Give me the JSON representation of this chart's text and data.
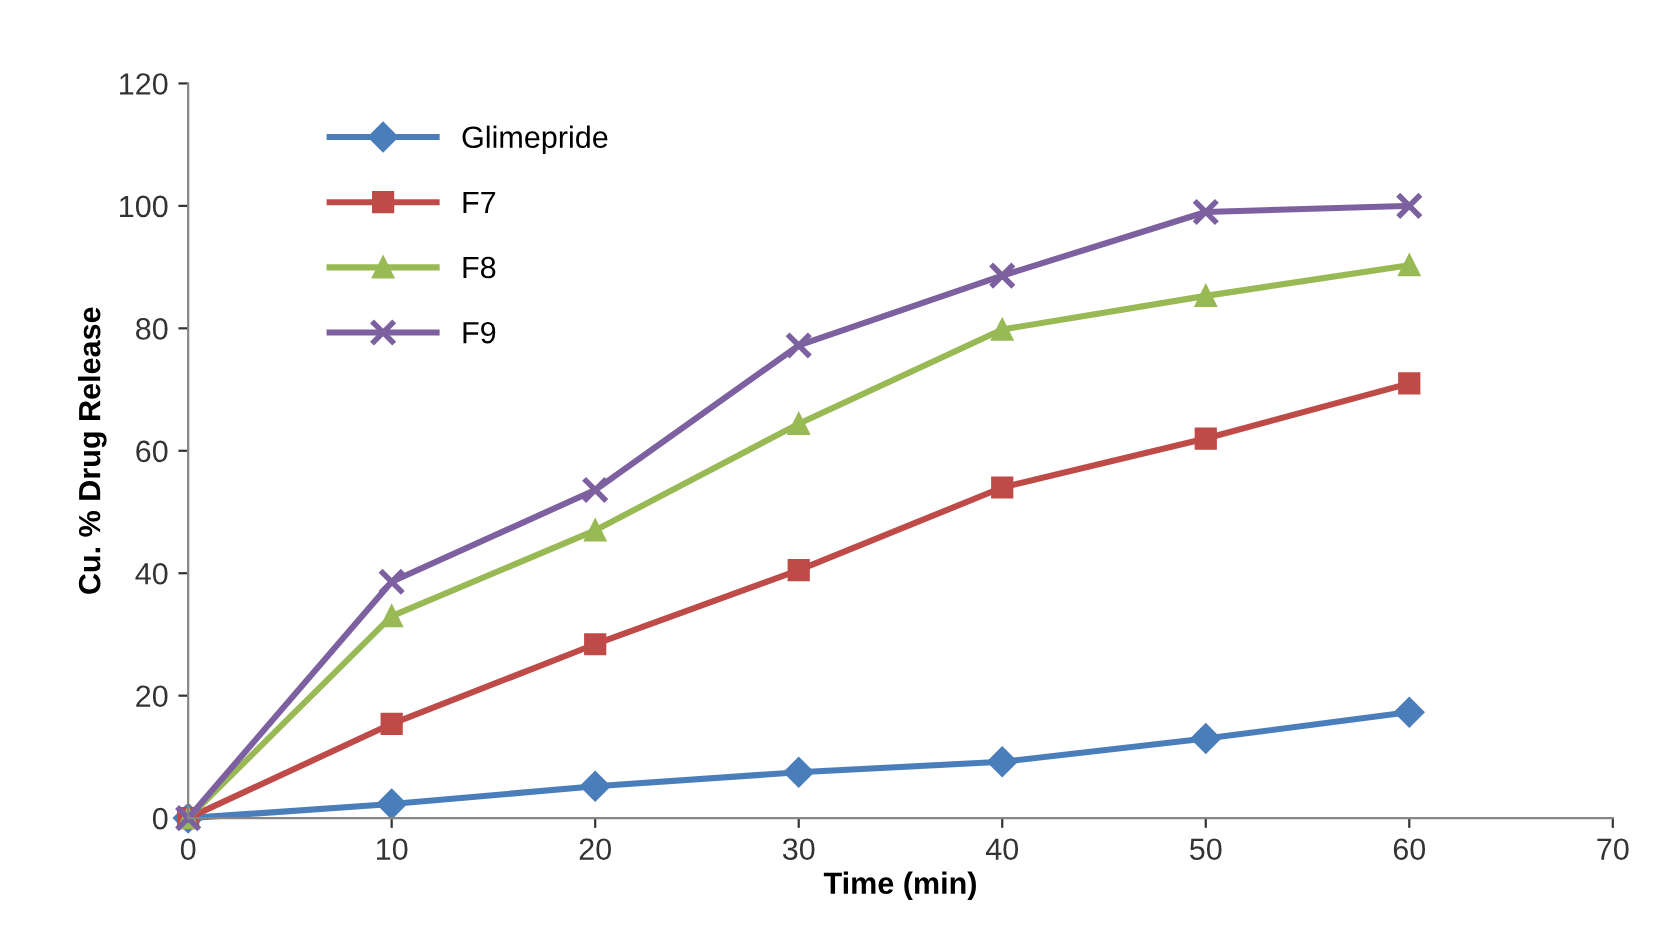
{
  "chart_data": {
    "type": "line",
    "xlabel": "Time (min)",
    "ylabel": "Cu. % Drug Release",
    "x": [
      0,
      10,
      20,
      30,
      40,
      50,
      60
    ],
    "series": [
      {
        "name": "Glimepride",
        "color": "#4a7ebb",
        "marker": "diamond",
        "values": [
          0,
          2.3,
          5.2,
          7.5,
          9.2,
          13,
          17.3
        ]
      },
      {
        "name": "F7",
        "color": "#be4b48",
        "marker": "square",
        "values": [
          0,
          15.4,
          28.4,
          40.5,
          54,
          62,
          71
        ]
      },
      {
        "name": "F8",
        "color": "#98b954",
        "marker": "triangle",
        "values": [
          0,
          33,
          47,
          64.4,
          79.8,
          85.3,
          90.3
        ]
      },
      {
        "name": "F9",
        "color": "#7d60a0",
        "marker": "cross",
        "values": [
          0,
          38.6,
          53.6,
          77.2,
          88.6,
          99,
          100
        ]
      }
    ],
    "xlim": [
      0,
      70
    ],
    "xticks": [
      0,
      10,
      20,
      30,
      40,
      50,
      60,
      70
    ],
    "ylim": [
      0,
      120
    ],
    "yticks": [
      0,
      20,
      40,
      60,
      80,
      100,
      120
    ],
    "grid": false,
    "legend": "top left",
    "line_style": "solid"
  }
}
